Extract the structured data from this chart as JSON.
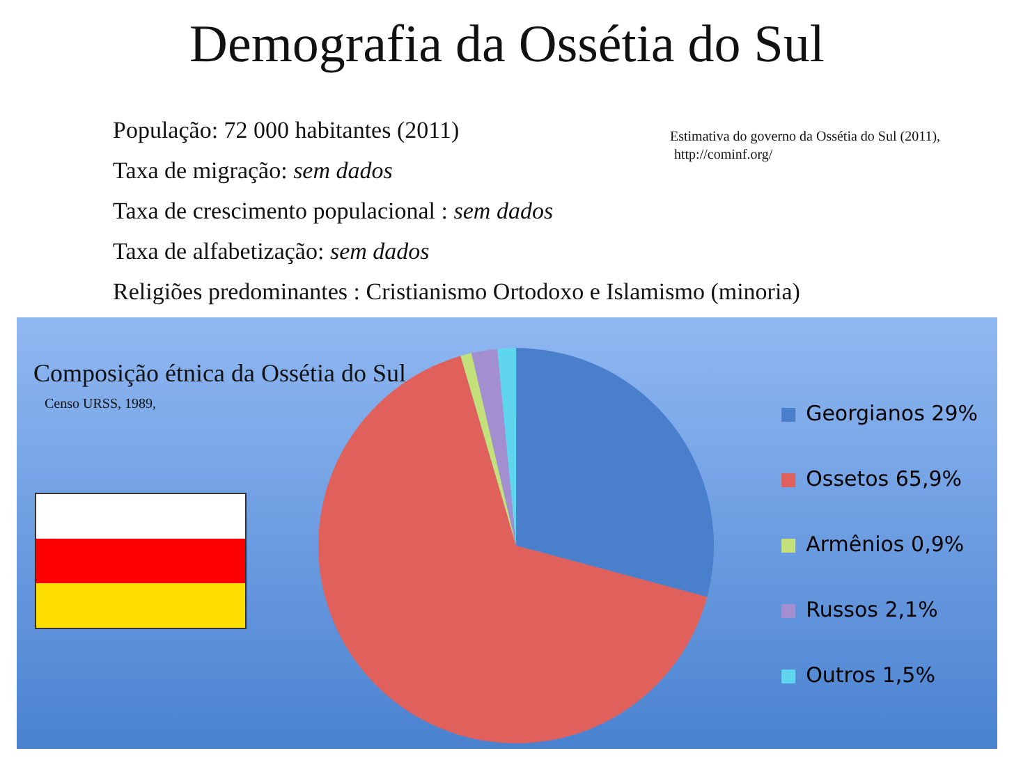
{
  "chart_data": {
    "type": "pie",
    "title": "Demografia da Ossétia do Sul",
    "subtitle": "Composição étnica da Ossétia do Sul",
    "annotations": [
      "População: 72 000 habitantes (2011)",
      "Taxa de migração: sem dados",
      "Taxa de crescimento populacional : sem dados",
      "Taxa de alfabetização: sem dados",
      "Religiões predominantes : Cristianismo Ortodoxo e Islamismo (minoria)",
      "Estimativa do governo da Ossétia do Sul (2011),",
      "http://cominf.org/",
      "Censo URSS, 1989,"
    ],
    "categories": [
      "Georgianos",
      "Ossetos",
      "Armênios",
      "Russos",
      "Outros"
    ],
    "values": [
      29,
      65.9,
      0.9,
      2.1,
      1.5
    ],
    "value_labels": [
      "29%",
      "65,9%",
      "0,9%",
      "2,1%",
      "1,5%"
    ],
    "colors": [
      "#4a7fcc",
      "#e0615c",
      "#c4e07a",
      "#a38ed0",
      "#5fd6ee"
    ],
    "legend": "right"
  }
}
